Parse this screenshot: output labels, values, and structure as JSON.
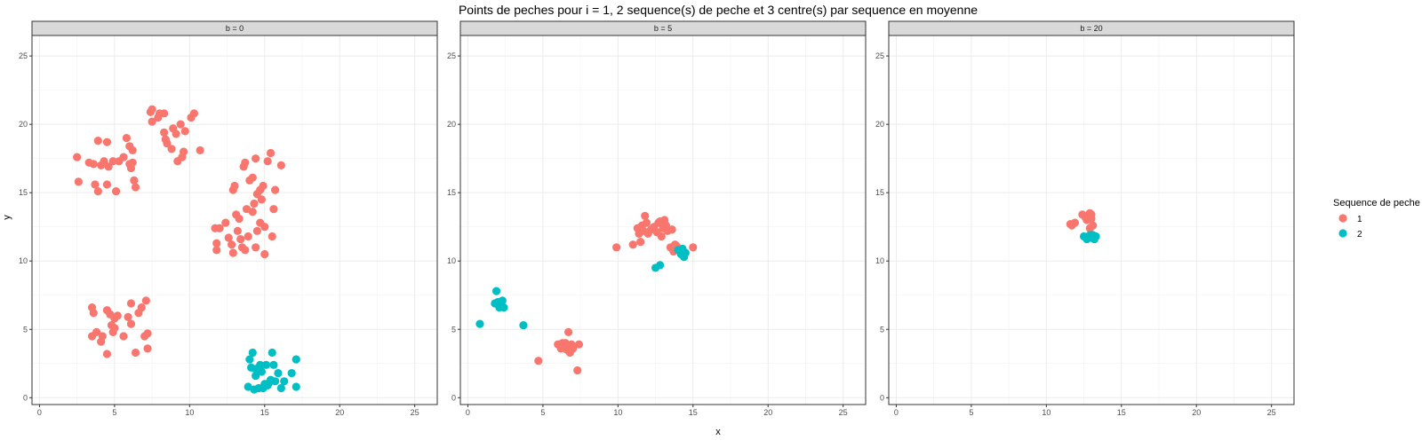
{
  "chart_data": {
    "type": "scatter",
    "title": "Points de peches pour i = 1, 2 sequence(s) de peche et 3 centre(s) par sequence en moyenne",
    "xlabel": "x",
    "ylabel": "y",
    "xlim": [
      -0.5,
      26.5
    ],
    "ylim": [
      -0.5,
      26.5
    ],
    "x_ticks": [
      0,
      5,
      10,
      15,
      20,
      25
    ],
    "y_ticks": [
      0,
      5,
      10,
      15,
      20,
      25
    ],
    "grid": true,
    "legend": {
      "title": "Sequence de peche",
      "position": "right",
      "entries": [
        {
          "label": "1",
          "color": "#F8766D"
        },
        {
          "label": "2",
          "color": "#00BFC4"
        }
      ]
    },
    "panels": [
      {
        "label": "b = 0",
        "series": [
          {
            "name": "1",
            "color": "#F8766D",
            "points": [
              [
                2.5,
                17.6
              ],
              [
                2.6,
                15.8
              ],
              [
                3.3,
                17.2
              ],
              [
                3.6,
                17.1
              ],
              [
                3.7,
                15.6
              ],
              [
                3.9,
                15.1
              ],
              [
                3.9,
                18.8
              ],
              [
                4.1,
                17.0
              ],
              [
                4.3,
                17.3
              ],
              [
                4.5,
                18.7
              ],
              [
                4.5,
                15.6
              ],
              [
                4.6,
                16.9
              ],
              [
                4.9,
                17.3
              ],
              [
                5.1,
                15.1
              ],
              [
                5.3,
                17.3
              ],
              [
                5.6,
                17.6
              ],
              [
                5.8,
                19.0
              ],
              [
                6.0,
                17.1
              ],
              [
                6.1,
                16.8
              ],
              [
                6.0,
                18.4
              ],
              [
                6.2,
                18.1
              ],
              [
                6.3,
                15.9
              ],
              [
                6.4,
                15.4
              ],
              [
                6.2,
                17.2
              ],
              [
                7.4,
                20.9
              ],
              [
                7.5,
                21.1
              ],
              [
                7.5,
                20.2
              ],
              [
                7.9,
                20.5
              ],
              [
                8.0,
                20.8
              ],
              [
                8.3,
                20.8
              ],
              [
                8.3,
                19.4
              ],
              [
                8.5,
                18.6
              ],
              [
                8.4,
                18.9
              ],
              [
                8.8,
                18.2
              ],
              [
                8.9,
                19.7
              ],
              [
                9.1,
                19.3
              ],
              [
                9.2,
                17.3
              ],
              [
                9.4,
                20.0
              ],
              [
                9.5,
                17.6
              ],
              [
                9.6,
                18.0
              ],
              [
                9.7,
                19.5
              ],
              [
                10.1,
                20.5
              ],
              [
                10.3,
                20.8
              ],
              [
                10.7,
                18.1
              ],
              [
                11.7,
                12.4
              ],
              [
                11.8,
                11.3
              ],
              [
                11.8,
                10.8
              ],
              [
                12.0,
                12.4
              ],
              [
                12.4,
                12.8
              ],
              [
                12.6,
                11.7
              ],
              [
                12.8,
                11.2
              ],
              [
                12.9,
                15.2
              ],
              [
                13.0,
                15.5
              ],
              [
                12.9,
                10.6
              ],
              [
                13.2,
                12.2
              ],
              [
                13.3,
                13.1
              ],
              [
                13.4,
                11.6
              ],
              [
                13.5,
                11.0
              ],
              [
                13.6,
                16.9
              ],
              [
                13.7,
                17.2
              ],
              [
                13.7,
                10.8
              ],
              [
                13.8,
                13.8
              ],
              [
                13.9,
                11.8
              ],
              [
                14.0,
                15.9
              ],
              [
                14.2,
                16.1
              ],
              [
                14.2,
                13.6
              ],
              [
                14.3,
                14.2
              ],
              [
                14.4,
                11.0
              ],
              [
                14.4,
                17.5
              ],
              [
                14.5,
                14.9
              ],
              [
                14.7,
                12.8
              ],
              [
                14.7,
                15.2
              ],
              [
                14.8,
                14.5
              ],
              [
                14.9,
                15.5
              ],
              [
                15.0,
                10.5
              ],
              [
                15.0,
                12.5
              ],
              [
                15.2,
                17.3
              ],
              [
                15.4,
                17.9
              ],
              [
                15.5,
                11.8
              ],
              [
                15.6,
                13.8
              ],
              [
                15.7,
                15.2
              ],
              [
                16.1,
                17.0
              ],
              [
                14.5,
                12.2
              ],
              [
                13.1,
                13.4
              ],
              [
                3.5,
                6.6
              ],
              [
                3.5,
                4.5
              ],
              [
                3.6,
                6.2
              ],
              [
                3.8,
                4.8
              ],
              [
                4.1,
                4.1
              ],
              [
                4.2,
                4.5
              ],
              [
                4.5,
                6.4
              ],
              [
                4.5,
                3.2
              ],
              [
                4.7,
                6.1
              ],
              [
                4.8,
                5.3
              ],
              [
                4.9,
                4.8
              ],
              [
                5.0,
                5.8
              ],
              [
                5.2,
                6.0
              ],
              [
                5.0,
                5.1
              ],
              [
                5.6,
                4.5
              ],
              [
                5.9,
                5.9
              ],
              [
                6.1,
                6.9
              ],
              [
                6.1,
                5.4
              ],
              [
                6.4,
                3.3
              ],
              [
                6.6,
                6.2
              ],
              [
                6.8,
                6.6
              ],
              [
                7.0,
                4.5
              ],
              [
                7.1,
                7.1
              ],
              [
                7.2,
                4.7
              ],
              [
                7.2,
                3.6
              ]
            ]
          },
          {
            "name": "2",
            "color": "#00BFC4",
            "points": [
              [
                13.9,
                0.8
              ],
              [
                14.0,
                2.8
              ],
              [
                14.1,
                2.2
              ],
              [
                14.2,
                3.3
              ],
              [
                14.3,
                0.6
              ],
              [
                14.4,
                1.6
              ],
              [
                14.6,
                0.7
              ],
              [
                14.6,
                2.2
              ],
              [
                14.8,
                1.9
              ],
              [
                15.0,
                1.0
              ],
              [
                15.1,
                2.4
              ],
              [
                15.2,
                0.9
              ],
              [
                15.4,
                1.3
              ],
              [
                15.5,
                3.3
              ],
              [
                15.6,
                2.4
              ],
              [
                15.7,
                1.2
              ],
              [
                15.9,
                1.8
              ],
              [
                16.1,
                0.7
              ],
              [
                16.3,
                1.2
              ],
              [
                16.8,
                1.8
              ],
              [
                17.1,
                2.8
              ],
              [
                17.1,
                0.8
              ],
              [
                14.9,
                0.7
              ],
              [
                14.7,
                2.4
              ],
              [
                15.3,
                1.1
              ],
              [
                14.4,
                2.1
              ]
            ]
          }
        ]
      },
      {
        "label": "b = 5",
        "series": [
          {
            "name": "1",
            "color": "#F8766D",
            "points": [
              [
                9.9,
                11.0
              ],
              [
                11.0,
                11.2
              ],
              [
                11.3,
                12.4
              ],
              [
                11.4,
                12.0
              ],
              [
                11.5,
                11.4
              ],
              [
                11.6,
                12.6
              ],
              [
                11.7,
                12.2
              ],
              [
                11.8,
                13.3
              ],
              [
                11.9,
                12.8
              ],
              [
                12.0,
                12.0
              ],
              [
                12.2,
                12.3
              ],
              [
                12.4,
                12.5
              ],
              [
                12.6,
                12.1
              ],
              [
                12.7,
                12.8
              ],
              [
                12.9,
                11.8
              ],
              [
                13.0,
                12.4
              ],
              [
                13.1,
                13.0
              ],
              [
                13.2,
                12.6
              ],
              [
                13.3,
                12.2
              ],
              [
                12.8,
                12.9
              ],
              [
                13.5,
                11.0
              ],
              [
                13.6,
                12.3
              ],
              [
                13.7,
                10.7
              ],
              [
                13.9,
                11.1
              ],
              [
                14.0,
                10.8
              ],
              [
                14.3,
                10.6
              ],
              [
                15.0,
                11.0
              ],
              [
                13.8,
                11.2
              ],
              [
                4.7,
                2.7
              ],
              [
                6.0,
                3.9
              ],
              [
                6.2,
                3.6
              ],
              [
                6.4,
                3.8
              ],
              [
                6.5,
                4.0
              ],
              [
                6.6,
                3.5
              ],
              [
                6.7,
                4.8
              ],
              [
                6.8,
                3.3
              ],
              [
                6.9,
                3.9
              ],
              [
                7.0,
                3.6
              ],
              [
                7.3,
                2.0
              ],
              [
                7.4,
                3.9
              ],
              [
                6.3,
                4.0
              ]
            ]
          },
          {
            "name": "2",
            "color": "#00BFC4",
            "points": [
              [
                0.8,
                5.4
              ],
              [
                1.8,
                6.9
              ],
              [
                1.9,
                7.8
              ],
              [
                2.0,
                7.0
              ],
              [
                2.1,
                6.6
              ],
              [
                2.2,
                6.8
              ],
              [
                2.3,
                7.1
              ],
              [
                2.4,
                6.6
              ],
              [
                3.7,
                5.3
              ],
              [
                12.5,
                9.5
              ],
              [
                12.8,
                9.7
              ],
              [
                14.0,
                10.8
              ],
              [
                14.2,
                10.5
              ],
              [
                14.3,
                10.9
              ],
              [
                14.4,
                10.3
              ],
              [
                14.5,
                10.6
              ]
            ]
          }
        ]
      },
      {
        "label": "b = 20",
        "series": [
          {
            "name": "1",
            "color": "#F8766D",
            "points": [
              [
                11.6,
                12.7
              ],
              [
                11.7,
                12.6
              ],
              [
                11.9,
                12.8
              ],
              [
                12.4,
                13.4
              ],
              [
                12.6,
                13.2
              ],
              [
                12.8,
                13.3
              ],
              [
                12.9,
                13.5
              ],
              [
                13.0,
                13.1
              ],
              [
                13.1,
                12.6
              ],
              [
                12.9,
                12.4
              ],
              [
                12.7,
                13.0
              ],
              [
                13.0,
                13.4
              ]
            ]
          },
          {
            "name": "2",
            "color": "#00BFC4",
            "points": [
              [
                12.5,
                11.8
              ],
              [
                12.7,
                11.6
              ],
              [
                12.9,
                11.9
              ],
              [
                13.0,
                11.7
              ],
              [
                13.2,
                11.6
              ],
              [
                13.3,
                11.8
              ],
              [
                12.8,
                11.7
              ],
              [
                13.1,
                11.9
              ]
            ]
          }
        ]
      }
    ]
  }
}
